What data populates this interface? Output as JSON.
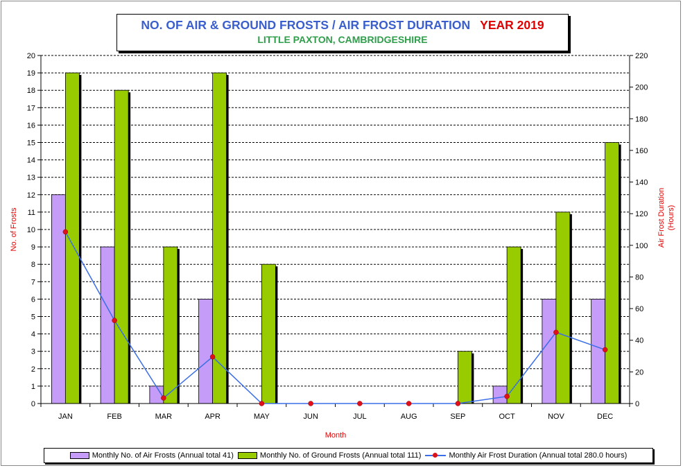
{
  "title": {
    "main": "NO. OF AIR & GROUND FROSTS / AIR FROST DURATION",
    "year": "YEAR 2019",
    "subtitle": "LITTLE PAXTON, CAMBRIDGESHIRE"
  },
  "colors": {
    "air_frost_bar": "#c59cf7",
    "ground_frost_bar": "#99cc00",
    "duration_line": "#3a6ee8",
    "duration_marker": "#e0101a",
    "axis_title": "#e00000",
    "title_main": "#3a5fcd",
    "title_year": "#e00000",
    "subtitle": "#2e9e4a"
  },
  "chart_data": {
    "type": "bar",
    "categories": [
      "JAN",
      "FEB",
      "MAR",
      "APR",
      "MAY",
      "JUN",
      "JUL",
      "AUG",
      "SEP",
      "OCT",
      "NOV",
      "DEC"
    ],
    "xlabel": "Month",
    "ylabel": "No. of Frosts",
    "y2label_line1": "Air Frost Duration",
    "y2label_line2": "(Hours)",
    "ylim": [
      0,
      20
    ],
    "y_ticks": [
      0,
      1,
      2,
      3,
      4,
      5,
      6,
      7,
      8,
      9,
      10,
      11,
      12,
      13,
      14,
      15,
      16,
      17,
      18,
      19,
      20
    ],
    "y2lim": [
      0,
      220
    ],
    "y2_ticks": [
      0,
      20,
      40,
      60,
      80,
      100,
      120,
      140,
      160,
      180,
      200,
      220
    ],
    "grid": "horizontal dashed",
    "legend_position": "bottom",
    "series": [
      {
        "name": "Monthly No. of Air Frosts (Annual total 41)",
        "type": "bar",
        "axis": "left",
        "values": [
          12,
          9,
          1,
          6,
          0,
          0,
          0,
          0,
          0,
          1,
          6,
          6
        ]
      },
      {
        "name": "Monthly No. of Ground Frosts (Annual total 111)",
        "type": "bar",
        "axis": "left",
        "values": [
          19,
          18,
          9,
          19,
          8,
          0,
          0,
          0,
          3,
          9,
          11,
          15
        ]
      },
      {
        "name": "Monthly Air Frost Duration (Annual total 280.0 hours)",
        "type": "line",
        "axis": "right",
        "values": [
          108.5,
          52.5,
          3.5,
          29.5,
          0,
          0,
          0,
          0,
          0,
          4.5,
          45,
          34
        ]
      }
    ]
  }
}
